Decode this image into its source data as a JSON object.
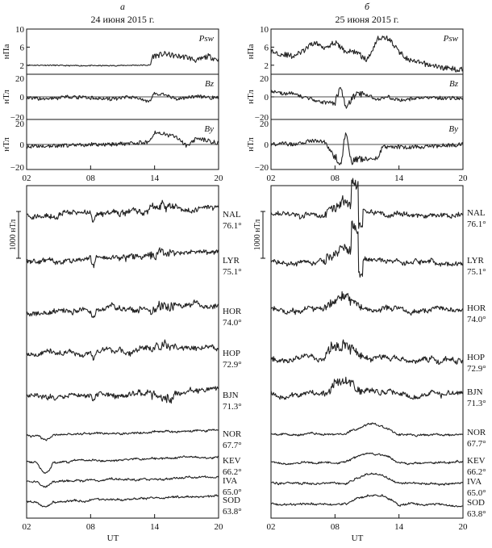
{
  "panels": [
    {
      "letter": "а",
      "date": "24 июня 2015 г."
    },
    {
      "letter": "б",
      "date": "25 июня 2015 г."
    }
  ],
  "imf": {
    "rows": [
      {
        "name": "Psw",
        "unit": "нПа",
        "ticks": [
          "10",
          "6",
          "2"
        ],
        "ylim": [
          0,
          10
        ]
      },
      {
        "name": "Bz",
        "unit": "нТл",
        "ticks": [
          "20",
          "0",
          "−20"
        ],
        "ylim": [
          -20,
          20
        ]
      },
      {
        "name": "By",
        "unit": "нТл",
        "ticks": [
          "20",
          "0",
          "−20"
        ],
        "ylim": [
          -20,
          20
        ]
      }
    ]
  },
  "x_ticks": [
    "02",
    "08",
    "14",
    "20"
  ],
  "x_label": "UT",
  "scale_bar_label": "1000 нТл",
  "stations": [
    {
      "code": "NAL",
      "lat": "76.1°"
    },
    {
      "code": "LYR",
      "lat": "75.1°"
    },
    {
      "code": "HOR",
      "lat": "74.0°"
    },
    {
      "code": "HOP",
      "lat": "72.9°"
    },
    {
      "code": "BJN",
      "lat": "71.3°"
    },
    {
      "code": "NOR",
      "lat": "67.7°"
    },
    {
      "code": "KEV",
      "lat": "66.2°"
    },
    {
      "code": "IVA",
      "lat": "65.0°"
    },
    {
      "code": "SOD",
      "lat": "63.8°"
    }
  ],
  "chart_data": [
    {
      "type": "line",
      "panel": "а",
      "title": "24 июня 2015 г.",
      "xlabel": "UT",
      "xlim": [
        2,
        20
      ],
      "series": [
        {
          "name": "Psw",
          "unit": "нПа",
          "x": [
            2,
            4,
            6,
            8,
            10,
            12,
            13.6,
            13.8,
            15,
            16,
            17,
            18,
            19,
            20
          ],
          "y": [
            2,
            2,
            1.9,
            1.9,
            1.9,
            2,
            2,
            4,
            4.5,
            4,
            3.8,
            3,
            4,
            3.2
          ]
        },
        {
          "name": "Bz",
          "unit": "нТл",
          "x": [
            2,
            4,
            6,
            8,
            10,
            12,
            13.5,
            14,
            15,
            16,
            17,
            18,
            19,
            20
          ],
          "y": [
            -1,
            -2,
            0,
            -1,
            -2,
            0,
            -4,
            3,
            2,
            -2,
            -1,
            1,
            -1,
            0
          ]
        },
        {
          "name": "By",
          "unit": "нТл",
          "x": [
            2,
            4,
            6,
            8,
            10,
            12,
            13.5,
            14,
            15,
            16,
            17,
            18,
            19,
            20
          ],
          "y": [
            -2,
            -1,
            -1,
            0,
            0,
            1,
            2,
            10,
            8,
            6,
            -1,
            5,
            3,
            1
          ]
        }
      ]
    },
    {
      "type": "line",
      "panel": "б",
      "title": "25 июня 2015 г.",
      "xlabel": "UT",
      "xlim": [
        2,
        20
      ],
      "series": [
        {
          "name": "Psw",
          "unit": "нПа",
          "x": [
            2,
            3,
            4,
            5,
            6,
            7,
            8,
            9,
            10,
            11,
            12,
            13,
            14,
            15,
            16,
            17,
            18,
            19,
            20
          ],
          "y": [
            5,
            4.5,
            4,
            5,
            7,
            6,
            7,
            5,
            5,
            3,
            8,
            8,
            5,
            3,
            2.5,
            2,
            1.5,
            1.2,
            1
          ]
        },
        {
          "name": "Bz",
          "unit": "нТл",
          "x": [
            2,
            3,
            4,
            5,
            6,
            7,
            8,
            8.5,
            9,
            10,
            11,
            12,
            13,
            14,
            16,
            18,
            20
          ],
          "y": [
            5,
            3,
            3,
            0,
            -3,
            -5,
            -6,
            10,
            -10,
            3,
            1,
            -2,
            0,
            -3,
            -1,
            -1,
            -1
          ]
        },
        {
          "name": "By",
          "unit": "нТл",
          "x": [
            2,
            3,
            4,
            5,
            6,
            7,
            8,
            8.6,
            9,
            9.5,
            10,
            12,
            12.5,
            13,
            14,
            16,
            18,
            20
          ],
          "y": [
            0,
            1,
            0,
            2,
            3,
            2,
            -10,
            -15,
            12,
            -14,
            -12,
            -11,
            -1,
            -2,
            -2,
            -2,
            -1,
            0
          ]
        }
      ]
    },
    {
      "type": "line",
      "panel": "а",
      "title": "",
      "xlabel": "UT",
      "xlim": [
        2,
        20
      ],
      "x_ticks": [
        2,
        8,
        14,
        20
      ],
      "series_names": [
        "NAL",
        "LYR",
        "HOR",
        "HOP",
        "BJN",
        "NOR",
        "KEV",
        "IVA",
        "SOD"
      ]
    },
    {
      "type": "line",
      "panel": "б",
      "title": "",
      "xlabel": "UT",
      "xlim": [
        2,
        20
      ],
      "x_ticks": [
        2,
        8,
        14,
        20
      ],
      "series_names": [
        "NAL",
        "LYR",
        "HOR",
        "HOP",
        "BJN",
        "NOR",
        "KEV",
        "IVA",
        "SOD"
      ]
    }
  ]
}
